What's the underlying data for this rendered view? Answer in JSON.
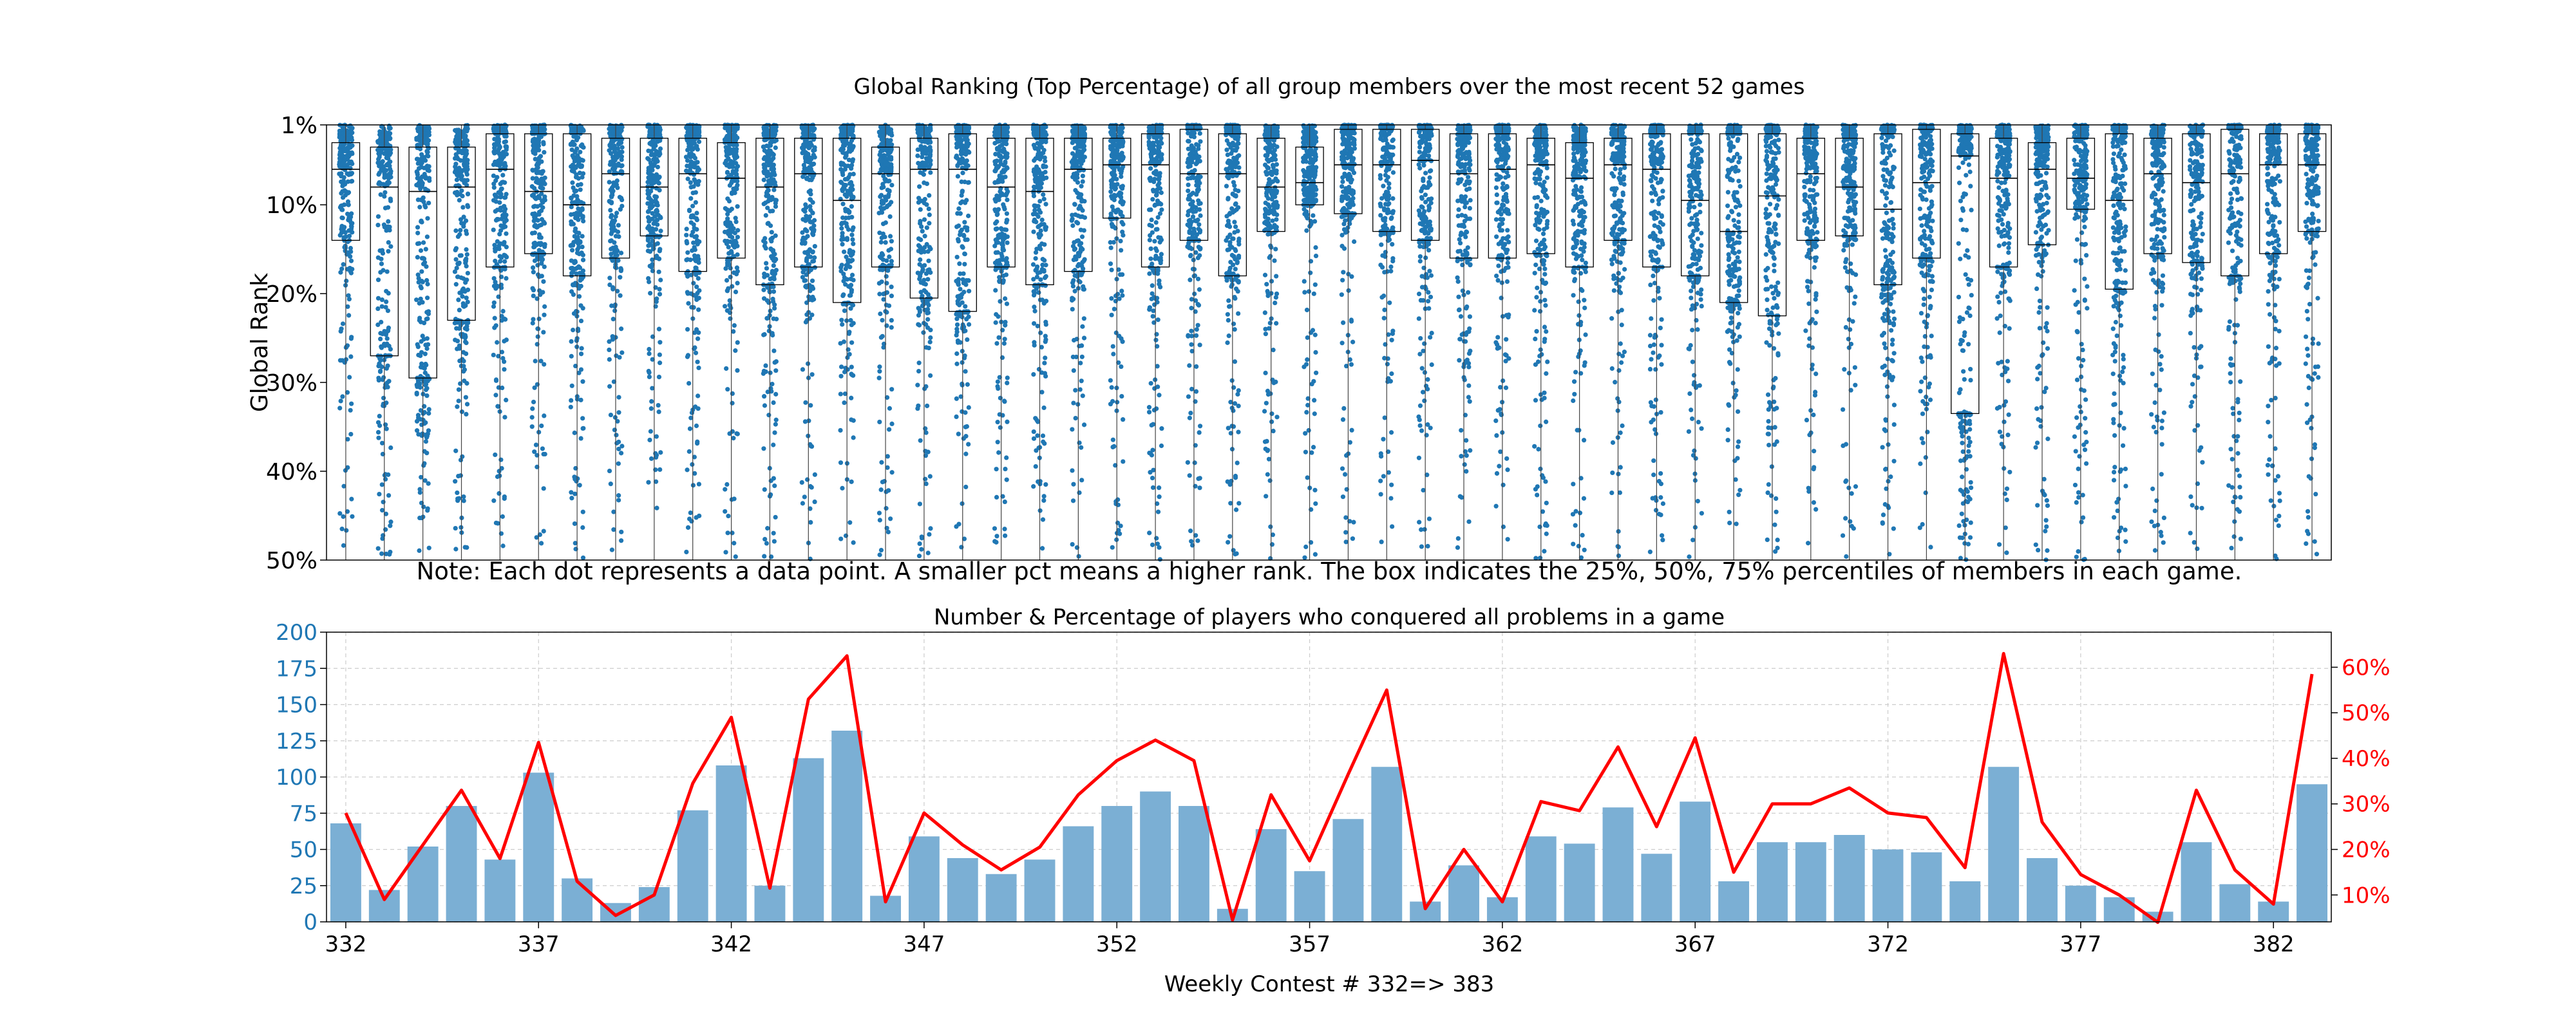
{
  "figure": {
    "top_title": "Global Ranking (Top Percentage) of all group members over the most recent 52 games",
    "note": "Note: Each dot represents a data point. A smaller pct means a higher rank. The box indicates the 25%, 50%, 75% percentiles of members in each game.",
    "bottom_title": "Number & Percentage of players who conquered all problems in a game",
    "xlabel": "Weekly Contest # 332=> 383"
  },
  "colors": {
    "dots": "#1f77b4",
    "bars": "#7bafd4",
    "line": "#ff0000",
    "box": "#000000"
  },
  "chart_data": [
    {
      "type": "scatter",
      "subtype": "box-with-jittered-points",
      "title": "Global Ranking (Top Percentage) of all group members over the most recent 52 games",
      "ylabel": "Global Rank",
      "ylim": [
        1,
        50
      ],
      "y_inverted": true,
      "y_ticks": [
        1,
        10,
        20,
        30,
        40,
        50
      ],
      "y_tick_labels": [
        "1%",
        "10%",
        "20%",
        "30%",
        "40%",
        "50%"
      ],
      "x": [
        332,
        333,
        334,
        335,
        336,
        337,
        338,
        339,
        340,
        341,
        342,
        343,
        344,
        345,
        346,
        347,
        348,
        349,
        350,
        351,
        352,
        353,
        354,
        355,
        356,
        357,
        358,
        359,
        360,
        361,
        362,
        363,
        364,
        365,
        366,
        367,
        368,
        369,
        370,
        371,
        372,
        373,
        374,
        375,
        376,
        377,
        378,
        379,
        380,
        381,
        382,
        383
      ],
      "q1": [
        3,
        3.5,
        3.5,
        3.5,
        2,
        2,
        2,
        2.5,
        2.5,
        2.5,
        3,
        2.5,
        2.5,
        2.5,
        3.5,
        2.5,
        2,
        2.5,
        2.5,
        2.5,
        2.5,
        2,
        1.5,
        2,
        2.5,
        3.5,
        1.5,
        1.5,
        1.5,
        2,
        2,
        2.5,
        3,
        2.5,
        2,
        2,
        2,
        2,
        2.5,
        2.5,
        2,
        1.5,
        2,
        2.5,
        3,
        2.5,
        2,
        2.5,
        2,
        1.5,
        2,
        2
      ],
      "median": [
        6,
        8,
        8.5,
        8,
        6,
        8.5,
        10,
        6.5,
        8,
        6.5,
        7,
        8,
        6.5,
        9.5,
        6.5,
        6,
        6,
        8,
        8.5,
        6,
        5.5,
        5.5,
        6.5,
        6.5,
        8,
        7.5,
        5.5,
        5.5,
        5,
        6.5,
        6,
        5.5,
        7,
        5.5,
        6,
        9.5,
        13,
        9,
        6.5,
        8,
        10.5,
        7.5,
        4.5,
        7,
        6,
        7,
        9.5,
        6.5,
        7.5,
        6.5,
        5.5,
        5.5
      ],
      "q3": [
        14,
        27,
        29.5,
        23,
        17,
        15.5,
        18,
        16,
        13.5,
        17.5,
        16,
        19,
        17,
        21,
        17,
        20.5,
        22,
        17,
        19,
        17.5,
        11.5,
        17,
        14,
        18,
        13,
        10,
        11,
        13,
        14,
        16,
        16,
        15.5,
        17,
        14,
        17,
        18,
        21,
        22.5,
        14,
        13.5,
        19,
        16,
        33.5,
        17,
        14.5,
        10.5,
        19.5,
        15.5,
        16.5,
        18,
        15.5,
        13
      ],
      "points_note": "~20-40 jittered member ranks per game, spread between 1% and 50%"
    },
    {
      "type": "bar",
      "secondary_type": "line",
      "title": "Number & Percentage of players who conquered all problems in a game",
      "xlabel": "Weekly Contest # 332=> 383",
      "x": [
        332,
        333,
        334,
        335,
        336,
        337,
        338,
        339,
        340,
        341,
        342,
        343,
        344,
        345,
        346,
        347,
        348,
        349,
        350,
        351,
        352,
        353,
        354,
        355,
        356,
        357,
        358,
        359,
        360,
        361,
        362,
        363,
        364,
        365,
        366,
        367,
        368,
        369,
        370,
        371,
        372,
        373,
        374,
        375,
        376,
        377,
        378,
        379,
        380,
        381,
        382,
        383
      ],
      "bar_values": [
        68,
        22,
        52,
        80,
        43,
        103,
        30,
        13,
        24,
        77,
        108,
        25,
        113,
        132,
        18,
        59,
        44,
        33,
        43,
        66,
        80,
        90,
        80,
        9,
        64,
        35,
        71,
        107,
        14,
        39,
        17,
        59,
        54,
        79,
        47,
        83,
        28,
        55,
        55,
        60,
        50,
        48,
        28,
        107,
        44,
        25,
        17,
        7,
        55,
        26,
        14,
        95
      ],
      "line_values_pct": [
        28,
        9,
        21,
        33,
        18,
        43.5,
        13,
        5.5,
        10,
        34.5,
        49,
        11.5,
        53,
        62.5,
        8.5,
        28,
        21,
        15.5,
        20.5,
        32,
        39.5,
        44,
        39.5,
        4.5,
        32,
        17.5,
        36.5,
        55,
        7,
        20,
        8.5,
        30.5,
        28.5,
        42.5,
        25,
        44.5,
        15,
        30,
        30,
        33.5,
        28,
        27,
        16,
        63,
        26,
        14.5,
        10,
        4,
        33,
        15.5,
        8,
        58.5
      ],
      "ylim_left": [
        0,
        200
      ],
      "y_ticks_left": [
        0,
        25,
        50,
        75,
        100,
        125,
        150,
        175,
        200
      ],
      "ylim_right_pct": [
        4.1,
        67.7
      ],
      "y_ticks_right": [
        10,
        20,
        30,
        40,
        50,
        60
      ],
      "y_tick_labels_right": [
        "10%",
        "20%",
        "30%",
        "40%",
        "50%",
        "60%"
      ],
      "x_ticks": [
        332,
        337,
        342,
        347,
        352,
        357,
        362,
        367,
        372,
        377,
        382
      ],
      "grid": true
    }
  ]
}
